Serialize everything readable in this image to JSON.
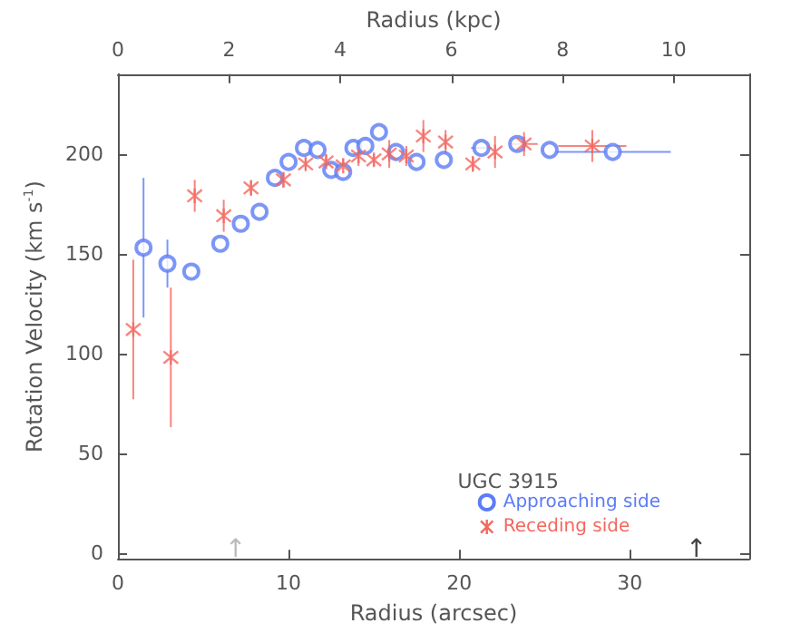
{
  "chart_data": {
    "type": "scatter",
    "xlabel": "Radius (arcsec)",
    "x2label": "Radius (kpc)",
    "ylabel": "Rotation Velocity (km s$^{-1}$)",
    "legend_title": "UGC 3915",
    "legend": "bottom right",
    "grid": false,
    "xlim": [
      0,
      37
    ],
    "xticks": [
      0,
      10,
      20,
      30
    ],
    "x2lim": [
      0,
      11.36
    ],
    "x2ticks": [
      0,
      2,
      4,
      6,
      8,
      10
    ],
    "ylim": [
      -3,
      240
    ],
    "yticks": [
      0,
      50,
      100,
      150,
      200
    ],
    "series": [
      {
        "name": "Approaching side",
        "color": "#5b7cf5",
        "marker": "circle",
        "x": [
          1.5,
          2.9,
          4.3,
          6.0,
          7.2,
          8.3,
          9.2,
          10.0,
          10.9,
          11.7,
          12.5,
          13.2,
          13.8,
          14.5,
          15.3,
          16.3,
          17.5,
          19.1,
          21.3,
          23.4,
          25.3,
          29.0
        ],
        "values": [
          153,
          145,
          141,
          155,
          165,
          171,
          188,
          196,
          203,
          202,
          192,
          191,
          203,
          204,
          211,
          201,
          196,
          197,
          203,
          205,
          202,
          201
        ],
        "errors": [
          35,
          12,
          null,
          null,
          null,
          null,
          null,
          null,
          null,
          null,
          null,
          null,
          null,
          null,
          null,
          null,
          null,
          null,
          null,
          null,
          null,
          null
        ],
        "xerrors": [
          null,
          null,
          null,
          null,
          null,
          null,
          null,
          null,
          null,
          null,
          null,
          null,
          null,
          null,
          null,
          null,
          null,
          null,
          0.6,
          null,
          null,
          3.4
        ]
      },
      {
        "name": "Receding side",
        "color": "#f4675f",
        "marker": "cross",
        "x": [
          0.9,
          3.1,
          4.5,
          6.2,
          7.8,
          9.7,
          11.0,
          12.2,
          13.2,
          14.1,
          15.0,
          15.9,
          16.9,
          17.9,
          19.2,
          20.8,
          22.1,
          23.8,
          27.8
        ],
        "values": [
          112,
          98,
          179,
          169,
          183,
          187,
          195,
          196,
          194,
          199,
          197,
          200,
          199,
          209,
          206,
          195,
          201,
          205,
          204
        ],
        "errors": [
          [
            77,
            147
          ],
          [
            63,
            133
          ],
          8,
          8,
          4,
          4,
          3,
          4,
          4,
          5,
          3,
          7,
          5,
          8,
          6,
          4,
          8,
          6,
          8
        ],
        "xerrors": [
          null,
          null,
          null,
          null,
          null,
          null,
          null,
          null,
          null,
          null,
          null,
          null,
          null,
          null,
          null,
          null,
          null,
          0.8,
          2.0
        ]
      }
    ],
    "annotations": [
      "↑",
      "↑"
    ]
  }
}
